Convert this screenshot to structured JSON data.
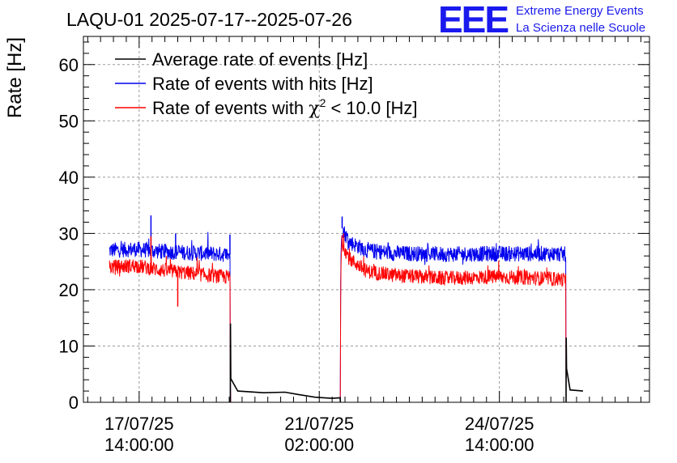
{
  "header": {
    "title": "LAQU-01 2025-07-17--2025-07-26",
    "logo_text": "EEE",
    "logo_line1": "Extreme Energy Events",
    "logo_line2": "La Scienza nelle Scuole"
  },
  "colors": {
    "average": "#000000",
    "hits": "#0000ee",
    "chi2": "#ff0000",
    "logo": "#1a1aee"
  },
  "chart_data": {
    "type": "line",
    "title": "LAQU-01 2025-07-17--2025-07-26",
    "ylabel": "Rate [Hz]",
    "ylim": [
      0,
      65
    ],
    "xlim": [
      "2025-07-16 12:00",
      "2025-07-27 12:00"
    ],
    "yticks": [
      0,
      10,
      20,
      30,
      40,
      50,
      60
    ],
    "xticks": [
      {
        "x": "2025-07-17 14:00",
        "label1": "17/07/25",
        "label2": "14:00:00"
      },
      {
        "x": "2025-07-21 02:00",
        "label1": "21/07/25",
        "label2": "02:00:00"
      },
      {
        "x": "2025-07-24 14:00",
        "label1": "24/07/25",
        "label2": "14:00:00"
      }
    ],
    "grid": true,
    "legend": "top-left",
    "series": [
      {
        "name": "Average rate of events [Hz]",
        "color_key": "average",
        "points": [
          [
            "2025-07-19 08:30",
            0
          ],
          [
            "2025-07-19 08:35",
            14
          ],
          [
            "2025-07-19 08:45",
            4.2
          ],
          [
            "2025-07-19 12:00",
            2.0
          ],
          [
            "2025-07-20 00:00",
            1.7
          ],
          [
            "2025-07-20 10:00",
            1.8
          ],
          [
            "2025-07-20 16:00",
            1.4
          ],
          [
            "2025-07-21 00:00",
            0.9
          ],
          [
            "2025-07-21 04:00",
            0.8
          ],
          [
            "2025-07-21 08:00",
            0.7
          ],
          [
            "2025-07-21 11:45",
            0.8
          ],
          [
            "2025-07-21 11:50",
            0
          ]
        ]
      },
      {
        "name": "Average rate of events [Hz]",
        "color_key": "average",
        "points": [
          [
            "2025-07-25 21:05",
            0
          ],
          [
            "2025-07-25 21:10",
            11.5
          ],
          [
            "2025-07-25 21:20",
            6
          ],
          [
            "2025-07-25 23:00",
            2.2
          ],
          [
            "2025-07-26 05:00",
            2.0
          ]
        ]
      },
      {
        "name": "Rate of events with hits [Hz]",
        "color_key": "hits",
        "noisy": true,
        "points": [
          [
            "2025-07-17 00:00",
            27.0
          ],
          [
            "2025-07-17 12:00",
            27.2
          ],
          [
            "2025-07-18 00:00",
            26.8
          ],
          [
            "2025-07-19 00:00",
            26.4
          ],
          [
            "2025-07-19 08:30",
            26.2
          ],
          [
            "2025-07-19 08:31",
            0
          ],
          [
            "2025-07-21 11:50",
            0
          ],
          [
            "2025-07-21 12:00",
            24
          ],
          [
            "2025-07-21 12:30",
            31.0
          ],
          [
            "2025-07-21 16:00",
            28.5
          ],
          [
            "2025-07-22 00:00",
            27.0
          ],
          [
            "2025-07-22 12:00",
            26.5
          ],
          [
            "2025-07-23 12:00",
            26.3
          ],
          [
            "2025-07-24 12:00",
            26.4
          ],
          [
            "2025-07-25 12:00",
            26.4
          ],
          [
            "2025-07-25 21:00",
            26.3
          ],
          [
            "2025-07-25 21:01",
            0
          ],
          [
            "2025-07-26 05:00",
            0
          ]
        ]
      },
      {
        "name": "Rate of events with χ² < 10.0 [Hz]",
        "color_key": "chi2",
        "noisy": true,
        "points": [
          [
            "2025-07-17 00:00",
            24.0
          ],
          [
            "2025-07-17 12:00",
            24.3
          ],
          [
            "2025-07-18 00:00",
            23.5
          ],
          [
            "2025-07-19 00:00",
            22.5
          ],
          [
            "2025-07-19 08:30",
            22.2
          ],
          [
            "2025-07-19 08:31",
            0
          ],
          [
            "2025-07-21 11:50",
            0
          ],
          [
            "2025-07-21 12:00",
            22
          ],
          [
            "2025-07-21 12:30",
            28.5
          ],
          [
            "2025-07-21 16:00",
            25.5
          ],
          [
            "2025-07-22 00:00",
            23.3
          ],
          [
            "2025-07-22 12:00",
            22.6
          ],
          [
            "2025-07-23 12:00",
            22.0
          ],
          [
            "2025-07-24 12:00",
            22.3
          ],
          [
            "2025-07-25 12:00",
            22.0
          ],
          [
            "2025-07-25 21:00",
            21.8
          ],
          [
            "2025-07-25 21:01",
            0
          ],
          [
            "2025-07-26 05:00",
            0
          ]
        ]
      }
    ],
    "spikes": [
      {
        "series": "hits",
        "x": "2025-07-17 19:30",
        "y": 33.2
      },
      {
        "series": "chi2",
        "x": "2025-07-17 19:30",
        "y": 29.5
      },
      {
        "series": "hits",
        "x": "2025-07-18 07:00",
        "y": 30.0
      },
      {
        "series": "chi2",
        "x": "2025-07-18 08:00",
        "y": 17.0
      },
      {
        "series": "hits",
        "x": "2025-07-19 08:20",
        "y": 29.8
      },
      {
        "series": "hits",
        "x": "2025-07-21 12:40",
        "y": 33.0
      }
    ],
    "legend_entries": [
      {
        "label": "Average rate of events [Hz]",
        "color_key": "average"
      },
      {
        "label": "Rate of events with hits [Hz]",
        "color_key": "hits"
      },
      {
        "label_pre": "Rate of events with ",
        "label_chi": "χ",
        "label_sup": "2",
        "label_post": " < 10.0 [Hz]",
        "color_key": "chi2"
      }
    ]
  }
}
